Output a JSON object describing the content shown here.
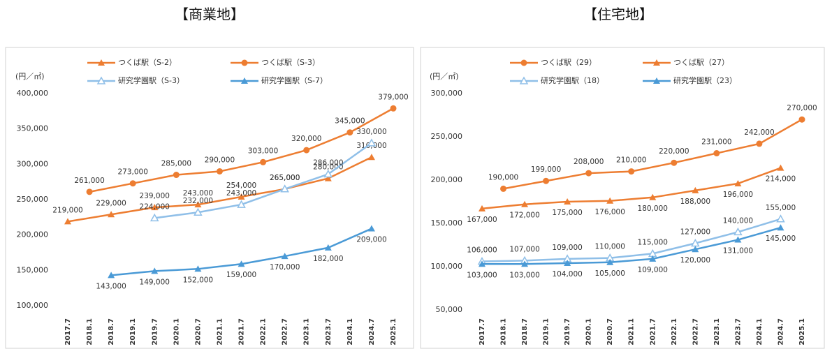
{
  "chart_data": [
    {
      "type": "line",
      "title": "【商業地】",
      "y_label": "(円／㎡)",
      "categories": [
        "2017.7",
        "2018.1",
        "2018.7",
        "2019.1",
        "2019.7",
        "2020.1",
        "2020.7",
        "2021.1",
        "2021.7",
        "2022.1",
        "2022.7",
        "2023.1",
        "2023.7",
        "2024.1",
        "2024.7",
        "2025.1"
      ],
      "ylim": [
        100000,
        400000
      ],
      "yticks": [
        {
          "value": 100000,
          "label": "100,000"
        },
        {
          "value": 150000,
          "label": "150,000"
        },
        {
          "value": 200000,
          "label": "200,000"
        },
        {
          "value": 250000,
          "label": "250,000"
        },
        {
          "value": 300000,
          "label": "300,000"
        },
        {
          "value": 350000,
          "label": "350,000"
        },
        {
          "value": 400000,
          "label": "400,000"
        }
      ],
      "grid": false,
      "series": [
        {
          "name": "つくば駅（S-2）",
          "color": "#ed7d31",
          "marker": "triangle",
          "x": [
            "2017.7",
            "2018.7",
            "2019.7",
            "2020.7",
            "2021.7",
            "2022.7",
            "2023.7",
            "2024.7"
          ],
          "values": [
            219000,
            229000,
            239000,
            243000,
            254000,
            265000,
            280000,
            310000
          ],
          "value_labels": [
            "219,000",
            "229,000",
            "239,000",
            "243,000",
            "254,000",
            "265,000",
            "280,000",
            "310,000"
          ]
        },
        {
          "name": "つくば駅（S-3）",
          "color": "#ed7d31",
          "marker": "circle",
          "x": [
            "2018.1",
            "2019.1",
            "2020.1",
            "2021.1",
            "2022.1",
            "2023.1",
            "2024.1",
            "2025.1"
          ],
          "values": [
            261000,
            273000,
            285000,
            290000,
            303000,
            320000,
            345000,
            379000
          ],
          "value_labels": [
            "261,000",
            "273,000",
            "285,000",
            "290,000",
            "303,000",
            "320,000",
            "345,000",
            "379,000"
          ]
        },
        {
          "name": "研究学園駅（S-3）",
          "color": "#8fbfe8",
          "marker": "open",
          "x": [
            "2019.7",
            "2020.7",
            "2021.7",
            "2022.7",
            "2023.7",
            "2024.7"
          ],
          "values": [
            224000,
            232000,
            243000,
            265000,
            286000,
            330000
          ],
          "value_labels": [
            "224,000",
            "232,000",
            "243,000",
            "265,000",
            "286,000",
            "330,000"
          ]
        },
        {
          "name": "研究学園駅（S-7）",
          "color": "#4a9ad6",
          "marker": "triangle",
          "x": [
            "2018.7",
            "2019.7",
            "2020.7",
            "2021.7",
            "2022.7",
            "2023.7",
            "2024.7"
          ],
          "values": [
            143000,
            149000,
            152000,
            159000,
            170000,
            182000,
            209000
          ],
          "value_labels": [
            "143,000",
            "149,000",
            "152,000",
            "159,000",
            "170,000",
            "182,000",
            "209,000"
          ]
        }
      ]
    },
    {
      "type": "line",
      "title": "【住宅地】",
      "y_label": "(円／㎡)",
      "categories": [
        "2017.7",
        "2018.1",
        "2018.7",
        "2019.1",
        "2019.7",
        "2020.1",
        "2020.7",
        "2021.1",
        "2021.7",
        "2022.1",
        "2022.7",
        "2023.1",
        "2023.7",
        "2024.1",
        "2024.7",
        "2025.1"
      ],
      "ylim": [
        50000,
        300000
      ],
      "yticks": [
        {
          "value": 50000,
          "label": "50,000"
        },
        {
          "value": 100000,
          "label": "100,000"
        },
        {
          "value": 150000,
          "label": "150,000"
        },
        {
          "value": 200000,
          "label": "200,000"
        },
        {
          "value": 250000,
          "label": "250,000"
        },
        {
          "value": 300000,
          "label": "300,000"
        }
      ],
      "grid": false,
      "series": [
        {
          "name": "つくば駅（29）",
          "color": "#ed7d31",
          "marker": "circle",
          "x": [
            "2018.1",
            "2019.1",
            "2020.1",
            "2021.1",
            "2022.1",
            "2023.1",
            "2024.1",
            "2025.1"
          ],
          "values": [
            190000,
            199000,
            208000,
            210000,
            220000,
            231000,
            242000,
            270000
          ],
          "value_labels": [
            "190,000",
            "199,000",
            "208,000",
            "210,000",
            "220,000",
            "231,000",
            "242,000",
            "270,000"
          ]
        },
        {
          "name": "つくば駅（27）",
          "color": "#ed7d31",
          "marker": "triangle",
          "x": [
            "2017.7",
            "2018.7",
            "2019.7",
            "2020.7",
            "2021.7",
            "2022.7",
            "2023.7",
            "2024.7"
          ],
          "values": [
            167000,
            172000,
            175000,
            176000,
            180000,
            188000,
            196000,
            214000
          ],
          "value_labels": [
            "167,000",
            "172,000",
            "175,000",
            "176,000",
            "180,000",
            "188,000",
            "196,000",
            "214,000"
          ]
        },
        {
          "name": "研究学園駅（18）",
          "color": "#8fbfe8",
          "marker": "open",
          "x": [
            "2017.7",
            "2018.7",
            "2019.7",
            "2020.7",
            "2021.7",
            "2022.7",
            "2023.7",
            "2024.7"
          ],
          "values": [
            106000,
            107000,
            109000,
            110000,
            115000,
            127000,
            140000,
            155000
          ],
          "value_labels": [
            "106,000",
            "107,000",
            "109,000",
            "110,000",
            "115,000",
            "127,000",
            "140,000",
            "155,000"
          ]
        },
        {
          "name": "研究学園駅（23）",
          "color": "#4a9ad6",
          "marker": "triangle",
          "x": [
            "2017.7",
            "2018.7",
            "2019.7",
            "2020.7",
            "2021.7",
            "2022.7",
            "2023.7",
            "2024.7"
          ],
          "values": [
            103000,
            103000,
            104000,
            105000,
            109000,
            120000,
            131000,
            145000
          ],
          "value_labels": [
            "103,000",
            "103,000",
            "104,000",
            "105,000",
            "109,000",
            "120,000",
            "131,000",
            "145,000"
          ]
        }
      ]
    }
  ]
}
